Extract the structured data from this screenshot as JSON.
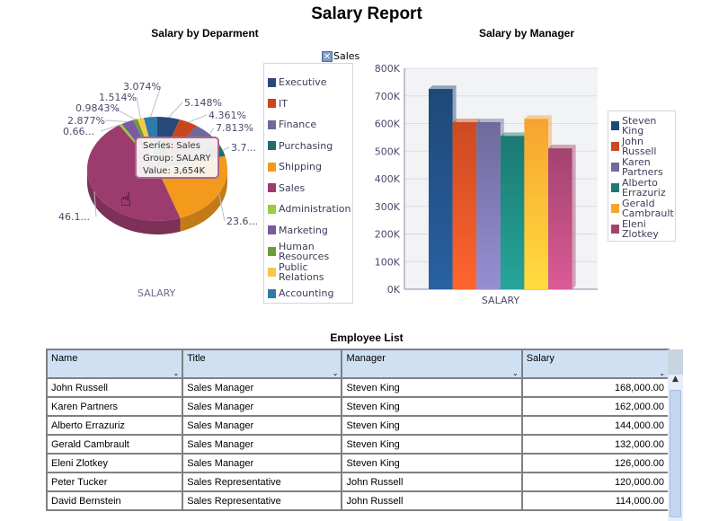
{
  "title": "Salary Report",
  "pie": {
    "title": "Salary by Deparment",
    "group_label": "SALARY",
    "close_label": "Sales",
    "slices": [
      {
        "name": "Executive",
        "pct": 5.148,
        "label": "5.148%",
        "color": "#27497a"
      },
      {
        "name": "IT",
        "pct": 4.361,
        "label": "4.361%",
        "color": "#c9451c"
      },
      {
        "name": "Finance",
        "pct": 7.813,
        "label": "7.813%",
        "color": "#6e6a9a"
      },
      {
        "name": "Purchasing",
        "pct": 3.7,
        "label": "3.7...",
        "color": "#1f6e6a"
      },
      {
        "name": "Shipping",
        "pct": 23.6,
        "label": "23.6...",
        "color": "#f39a1c"
      },
      {
        "name": "Sales",
        "pct": 46.1,
        "label": "46.1...",
        "color": "#9c3c6e"
      },
      {
        "name": "Administration",
        "pct": 0.66,
        "label": "0.66...",
        "color": "#9ccc3c"
      },
      {
        "name": "Marketing",
        "pct": 2.877,
        "label": "2.877%",
        "color": "#7a5aa0"
      },
      {
        "name": "Human Resources",
        "pct": 0.9843,
        "label": "0.9843%",
        "color": "#6a9c3c"
      },
      {
        "name": "Public Relations",
        "pct": 1.514,
        "label": "1.514%",
        "color": "#f5c84a"
      },
      {
        "name": "Accounting",
        "pct": 3.074,
        "label": "3.074%",
        "color": "#2e7aa8"
      }
    ],
    "tooltip": {
      "series": "Series: Sales",
      "group": "Group: SALARY",
      "value": "Value: 3,654K"
    }
  },
  "bar": {
    "title": "Salary by Manager",
    "category": "SALARY",
    "ylim": [
      0,
      800
    ],
    "yticks": [
      "0K",
      "100K",
      "200K",
      "300K",
      "400K",
      "500K",
      "600K",
      "700K",
      "800K"
    ],
    "series": [
      {
        "name": "Steven King",
        "value": 725,
        "color": "#1e4878"
      },
      {
        "name": "John Russell",
        "value": 605,
        "color": "#cc4a22"
      },
      {
        "name": "Karen Partners",
        "value": 605,
        "color": "#6e6a9c"
      },
      {
        "name": "Alberto Errazuriz",
        "value": 555,
        "color": "#1c7a72"
      },
      {
        "name": "Gerald Cambrault",
        "value": 617,
        "color": "#f7a32e"
      },
      {
        "name": "Eleni Zlotkey",
        "value": 510,
        "color": "#a2436f"
      }
    ]
  },
  "table": {
    "title": "Employee List",
    "columns": [
      "Name",
      "Title",
      "Manager",
      "Salary"
    ],
    "rows": [
      [
        "John Russell",
        "Sales Manager",
        "Steven King",
        "168,000.00"
      ],
      [
        "Karen Partners",
        "Sales Manager",
        "Steven King",
        "162,000.00"
      ],
      [
        "Alberto Errazuriz",
        "Sales Manager",
        "Steven King",
        "144,000.00"
      ],
      [
        "Gerald Cambrault",
        "Sales Manager",
        "Steven King",
        "132,000.00"
      ],
      [
        "Eleni Zlotkey",
        "Sales Manager",
        "Steven King",
        "126,000.00"
      ],
      [
        "Peter Tucker",
        "Sales Representative",
        "John Russell",
        "120,000.00"
      ],
      [
        "David Bernstein",
        "Sales Representative",
        "John Russell",
        "114,000.00"
      ]
    ]
  }
}
